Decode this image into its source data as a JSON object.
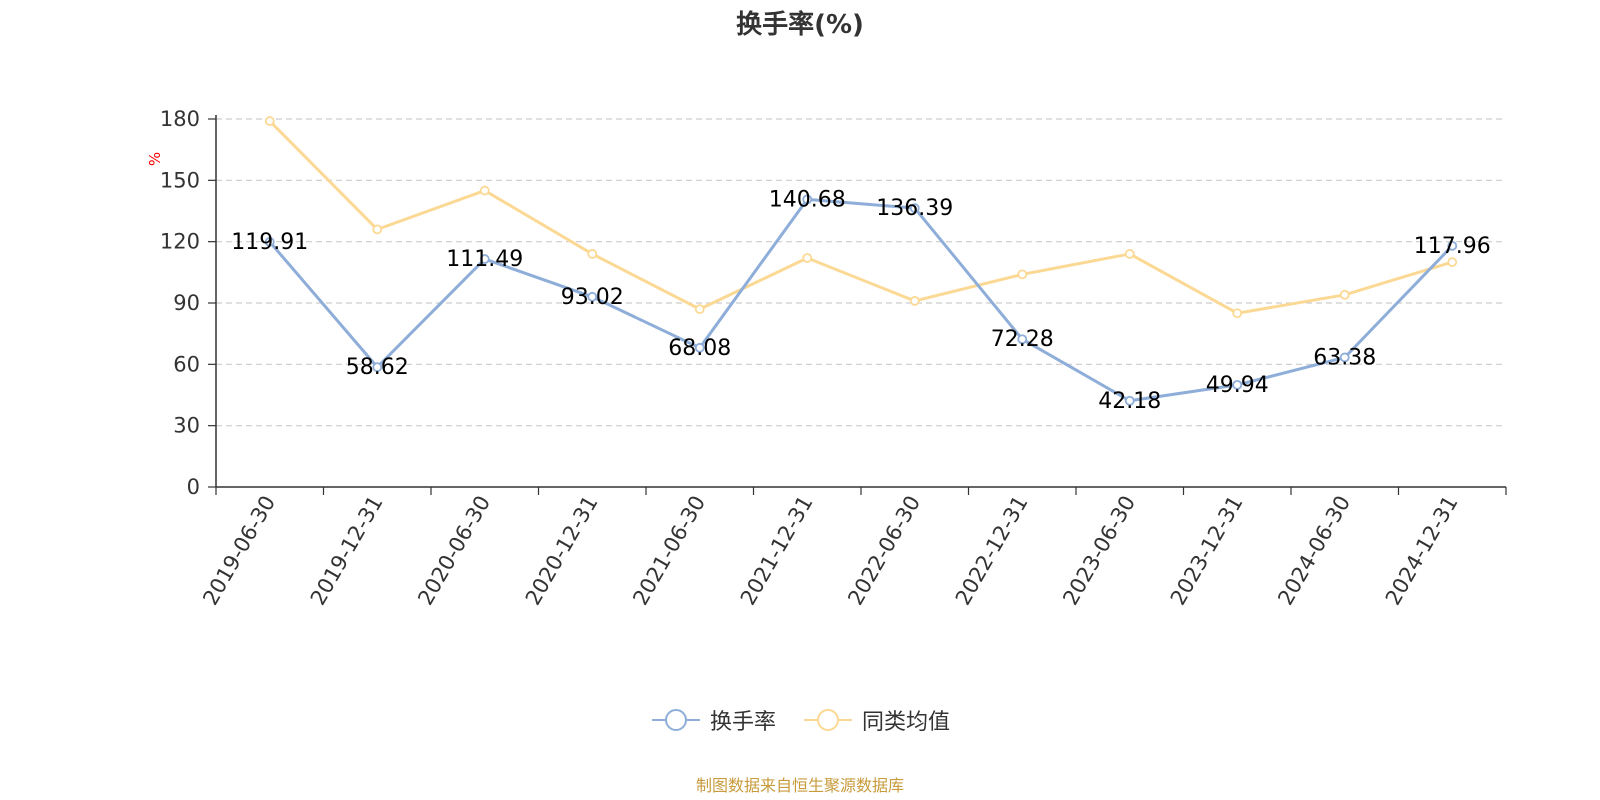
{
  "source_note": "制图数据来自恒生聚源数据库",
  "colors": {
    "series1": "#8eaed9",
    "series2": "#fbd994",
    "axis": "#333333",
    "grid": "#cccccc",
    "unit": "#ff0000",
    "source": "#c89b3c"
  },
  "chart_data": {
    "type": "line",
    "title": "换手率(%)",
    "ylabel": "%",
    "xlabel": "",
    "ylim": [
      0,
      180
    ],
    "yticks": [
      0,
      30,
      60,
      90,
      120,
      150,
      180
    ],
    "grid": true,
    "legend_position": "bottom-center",
    "categories": [
      "2019-06-30",
      "2019-12-31",
      "2020-06-30",
      "2020-12-31",
      "2021-06-30",
      "2021-12-31",
      "2022-06-30",
      "2022-12-31",
      "2023-06-30",
      "2023-12-31",
      "2024-06-30",
      "2024-12-31"
    ],
    "series": [
      {
        "name": "换手率",
        "values": [
          119.91,
          58.62,
          111.49,
          93.02,
          68.08,
          140.68,
          136.39,
          72.28,
          42.18,
          49.94,
          63.38,
          117.96
        ],
        "labels": [
          "119.91",
          "58.62",
          "111.49",
          "93.02",
          "68.08",
          "140.68",
          "136.39",
          "72.28",
          "42.18",
          "49.94",
          "63.38",
          "117.96"
        ],
        "color": "#8eaed9"
      },
      {
        "name": "同类均值",
        "values": [
          179,
          126,
          145,
          114,
          87,
          112,
          91,
          104,
          114,
          85,
          94,
          110
        ],
        "color": "#fbd994"
      }
    ]
  }
}
